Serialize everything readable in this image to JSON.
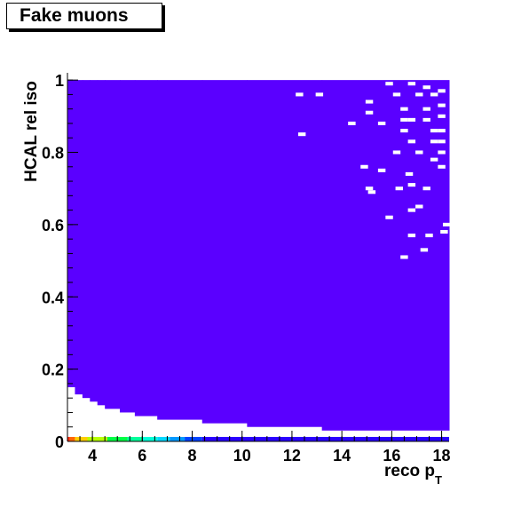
{
  "title": "Fake muons",
  "chart_data": {
    "type": "heatmap",
    "xlabel_main": "reco p",
    "xlabel_sub": "T",
    "ylabel": "HCAL rel iso",
    "xlim": [
      3,
      18.3
    ],
    "ylim": [
      0,
      1.02
    ],
    "x_ticks": [
      4,
      6,
      8,
      10,
      12,
      14,
      16,
      18
    ],
    "y_ticks": [
      0,
      0.2,
      0.4,
      0.6,
      0.8,
      1
    ],
    "y_tick_labels": [
      "0",
      "0.2",
      "0.4",
      "0.6",
      "0.8",
      "1"
    ],
    "fill_color": "#5a00ff",
    "grid": false,
    "bin_width": 0.3,
    "bin_height": 0.01,
    "lower_boundary": [
      {
        "x0": 3.0,
        "x1": 3.3,
        "y": 0.15
      },
      {
        "x0": 3.3,
        "x1": 3.6,
        "y": 0.13
      },
      {
        "x0": 3.6,
        "x1": 3.9,
        "y": 0.12
      },
      {
        "x0": 3.9,
        "x1": 4.2,
        "y": 0.11
      },
      {
        "x0": 4.2,
        "x1": 4.5,
        "y": 0.1
      },
      {
        "x0": 4.5,
        "x1": 5.1,
        "y": 0.09
      },
      {
        "x0": 5.1,
        "x1": 5.7,
        "y": 0.08
      },
      {
        "x0": 5.7,
        "x1": 6.6,
        "y": 0.07
      },
      {
        "x0": 6.6,
        "x1": 8.4,
        "y": 0.06
      },
      {
        "x0": 8.4,
        "x1": 10.2,
        "y": 0.05
      },
      {
        "x0": 10.2,
        "x1": 13.2,
        "y": 0.04
      },
      {
        "x0": 13.2,
        "x1": 18.3,
        "y": 0.03
      }
    ],
    "empty_bins": [
      {
        "x": 12.3,
        "y": 0.96
      },
      {
        "x": 13.1,
        "y": 0.96
      },
      {
        "x": 14.4,
        "y": 0.88
      },
      {
        "x": 12.4,
        "y": 0.85
      },
      {
        "x": 14.9,
        "y": 0.76
      },
      {
        "x": 15.6,
        "y": 0.75
      },
      {
        "x": 15.2,
        "y": 0.69
      },
      {
        "x": 15.1,
        "y": 0.7
      },
      {
        "x": 15.9,
        "y": 0.62
      },
      {
        "x": 16.3,
        "y": 0.7
      },
      {
        "x": 16.7,
        "y": 0.74
      },
      {
        "x": 17.4,
        "y": 0.7
      },
      {
        "x": 16.8,
        "y": 0.64
      },
      {
        "x": 16.8,
        "y": 0.57
      },
      {
        "x": 16.5,
        "y": 0.51
      },
      {
        "x": 17.3,
        "y": 0.53
      },
      {
        "x": 17.5,
        "y": 0.57
      },
      {
        "x": 18.1,
        "y": 0.58
      },
      {
        "x": 18.2,
        "y": 0.6
      },
      {
        "x": 16.8,
        "y": 0.71
      },
      {
        "x": 15.1,
        "y": 0.94
      },
      {
        "x": 15.1,
        "y": 0.91
      },
      {
        "x": 15.6,
        "y": 0.88
      },
      {
        "x": 16.2,
        "y": 0.96
      },
      {
        "x": 16.5,
        "y": 0.92
      },
      {
        "x": 16.5,
        "y": 0.89
      },
      {
        "x": 16.8,
        "y": 0.89
      },
      {
        "x": 16.5,
        "y": 0.86
      },
      {
        "x": 16.8,
        "y": 0.83
      },
      {
        "x": 17.7,
        "y": 0.86
      },
      {
        "x": 17.7,
        "y": 0.83
      },
      {
        "x": 18.0,
        "y": 0.86
      },
      {
        "x": 18.0,
        "y": 0.83
      },
      {
        "x": 18.0,
        "y": 0.9
      },
      {
        "x": 18.0,
        "y": 0.93
      },
      {
        "x": 17.4,
        "y": 0.89
      },
      {
        "x": 17.4,
        "y": 0.92
      },
      {
        "x": 18.0,
        "y": 0.8
      },
      {
        "x": 17.7,
        "y": 0.78
      },
      {
        "x": 15.9,
        "y": 0.99
      },
      {
        "x": 16.8,
        "y": 0.99
      },
      {
        "x": 17.4,
        "y": 0.98
      },
      {
        "x": 17.7,
        "y": 0.96
      },
      {
        "x": 18.0,
        "y": 0.97
      },
      {
        "x": 17.1,
        "y": 0.96
      },
      {
        "x": 16.2,
        "y": 0.8
      },
      {
        "x": 17.1,
        "y": 0.8
      },
      {
        "x": 18.0,
        "y": 0.76
      },
      {
        "x": 17.1,
        "y": 0.65
      },
      {
        "x": 17.1,
        "y": 0.01
      },
      {
        "x": 17.6,
        "y": 0.01
      },
      {
        "x": 18.0,
        "y": 0.01
      }
    ],
    "color_strip": {
      "y": 0.005,
      "colors": [
        "#ff2a00",
        "#ff6600",
        "#ffcc00",
        "#b8ff00",
        "#00ff44",
        "#00ff9a",
        "#00ffd8",
        "#00d8ff",
        "#0099ff",
        "#0044ff",
        "#2a00ff"
      ]
    }
  }
}
